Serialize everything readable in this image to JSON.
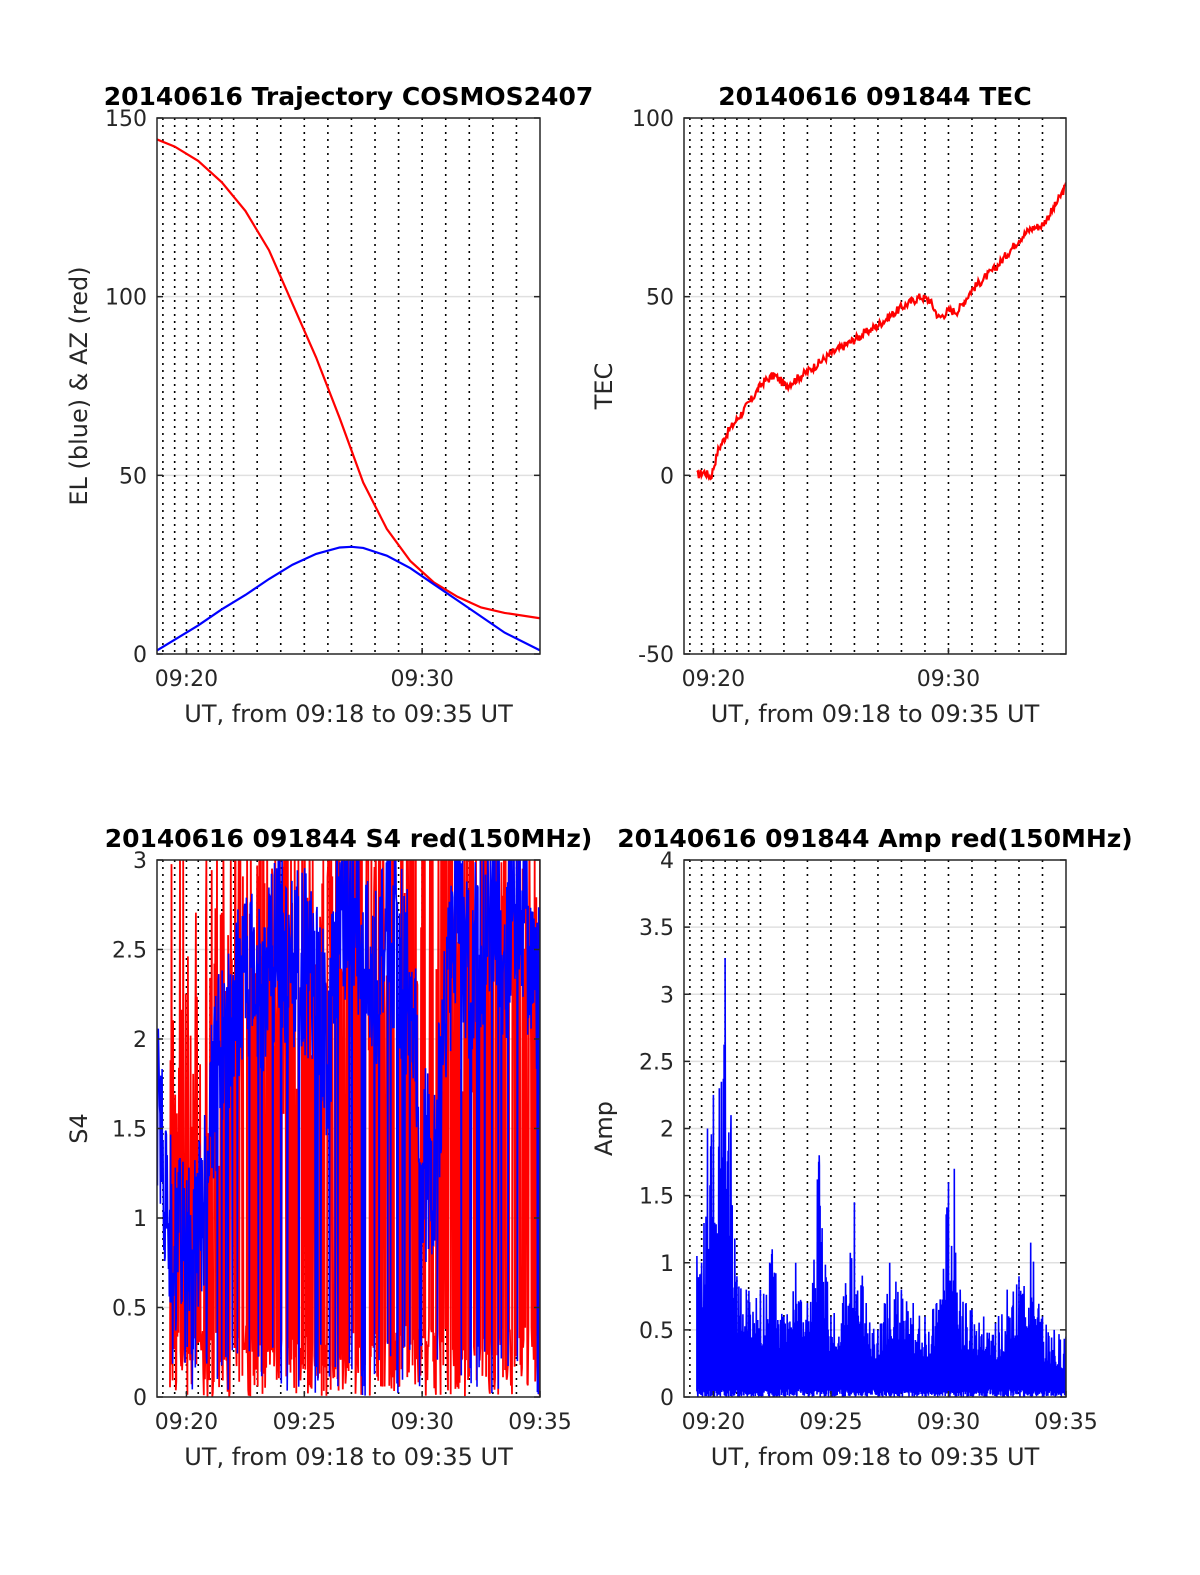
{
  "figure": {
    "background": "#ffffff",
    "trace_colors": {
      "red": "#ff0000",
      "blue": "#0000ff"
    }
  },
  "chart_data": [
    {
      "type": "line",
      "title": "20140616 Trajectory COSMOS2407",
      "xlabel": "UT, from 09:18 to 09:35 UT",
      "ylabel": "EL (blue) & AZ (red)",
      "xlim": [
        18.75,
        35
      ],
      "ylim": [
        0,
        150
      ],
      "xticks": [
        20,
        30
      ],
      "xtick_labels": [
        "09:20",
        "09:30"
      ],
      "yticks": [
        0,
        50,
        100,
        150
      ],
      "ytick_labels": [
        "0",
        "50",
        "100",
        "150"
      ],
      "grid": true,
      "series": [
        {
          "color": "#ff0000",
          "x": [
            18.75,
            19.5,
            20.5,
            21.5,
            22.5,
            23.5,
            24.5,
            25.5,
            26.5,
            27.5,
            28.5,
            29.5,
            30.5,
            31.5,
            32.5,
            33.5,
            35
          ],
          "values": [
            144,
            142,
            138,
            132,
            124,
            113,
            98,
            83,
            66,
            48,
            35,
            26,
            20,
            16,
            13,
            11.5,
            10
          ]
        },
        {
          "color": "#0000ff",
          "x": [
            18.75,
            19.5,
            20.5,
            21.5,
            22.5,
            23.5,
            24.5,
            25.5,
            26.5,
            27,
            27.5,
            28.5,
            29.5,
            30.5,
            31.5,
            32.5,
            33.5,
            35
          ],
          "values": [
            1,
            4,
            8,
            12.5,
            16.5,
            21,
            25,
            28,
            29.8,
            30,
            29.7,
            27.5,
            24,
            19.5,
            15,
            10.5,
            6,
            1
          ]
        }
      ]
    },
    {
      "type": "line",
      "title": "20140616 091844 TEC",
      "xlabel": "UT, from 09:18 to 09:35 UT",
      "ylabel": "TEC",
      "xlim": [
        18.75,
        35
      ],
      "ylim": [
        -50,
        100
      ],
      "xticks": [
        20,
        30
      ],
      "xtick_labels": [
        "09:20",
        "09:30"
      ],
      "yticks": [
        -50,
        0,
        50,
        100
      ],
      "ytick_labels": [
        "-50",
        "0",
        "50",
        "100"
      ],
      "grid": true,
      "series": [
        {
          "color": "#ff0000",
          "x": [
            19.3,
            19.6,
            19.9,
            20.2,
            20.6,
            21.1,
            21.6,
            22.1,
            22.6,
            23.1,
            24,
            25,
            26,
            27,
            28,
            28.8,
            29.2,
            29.6,
            30,
            30.4,
            31,
            32,
            33,
            33.5,
            34,
            34.5,
            35
          ],
          "values": [
            0,
            1,
            -0.5,
            7,
            12,
            16.5,
            21,
            26,
            28,
            25,
            29,
            34,
            38,
            42,
            47,
            50,
            49,
            44,
            46,
            46,
            52,
            58,
            66,
            69,
            70,
            75,
            81
          ]
        }
      ]
    },
    {
      "type": "line",
      "title": "20140616 091844 S4 red(150MHz)",
      "xlabel": "UT, from 09:18 to 09:35 UT",
      "ylabel": "S4",
      "xlim": [
        18.75,
        35
      ],
      "ylim": [
        0,
        3
      ],
      "xticks": [
        20,
        25,
        30,
        35
      ],
      "xtick_labels": [
        "09:20",
        "09:25",
        "09:30",
        "09:35"
      ],
      "yticks": [
        0,
        0.5,
        1,
        1.5,
        2,
        2.5,
        3
      ],
      "ytick_labels": [
        "0",
        "0.5",
        "1",
        "1.5",
        "2",
        "2.5",
        "3"
      ],
      "grid": true,
      "series": [
        {
          "color": "#ff0000",
          "note_noise": true,
          "x": [
            19.3,
            19.6,
            19.9,
            20.2,
            20.5,
            20.8,
            21.1,
            21.5,
            22,
            23,
            24,
            25,
            26,
            27,
            28,
            29,
            30,
            31,
            32,
            33,
            34,
            35
          ],
          "values": [
            1.5,
            2.0,
            1.8,
            1.3,
            1.5,
            1.6,
            1.8,
            1.7,
            2.0,
            2.5,
            2.2,
            2.3,
            2.4,
            2.3,
            2.5,
            2.4,
            2.6,
            2.2,
            2.3,
            2.5,
            2.4,
            2.0
          ]
        },
        {
          "color": "#0000ff",
          "x": [
            18.75,
            19.0,
            19.3,
            19.6,
            19.9,
            20.2,
            20.5,
            20.8,
            21.1,
            21.5,
            22,
            22.5,
            23,
            23.5,
            24,
            24.5,
            25,
            25.5,
            26,
            26.5,
            27,
            27.5,
            28,
            28.5,
            29,
            29.5,
            30,
            30.5,
            31,
            31.5,
            32,
            32.5,
            33,
            33.5,
            34,
            34.5,
            35
          ],
          "values": [
            1.5,
            1.3,
            1.0,
            0.8,
            0.75,
            0.7,
            0.8,
            1.1,
            1.6,
            1.9,
            2.2,
            2.3,
            2.2,
            2.4,
            2.5,
            2.3,
            2.4,
            2.2,
            1.9,
            2.6,
            2.8,
            2.5,
            2.3,
            2.6,
            2.4,
            2.2,
            1.3,
            1.1,
            2.2,
            2.6,
            2.3,
            2.5,
            2.7,
            2.4,
            2.8,
            2.5,
            2.1
          ]
        }
      ]
    },
    {
      "type": "line",
      "title": "20140616 091844 Amp red(150MHz)",
      "xlabel": "UT, from 09:18 to 09:35 UT",
      "ylabel": "Amp",
      "xlim": [
        18.75,
        35
      ],
      "ylim": [
        0,
        4
      ],
      "xticks": [
        20,
        25,
        30,
        35
      ],
      "xtick_labels": [
        "09:20",
        "09:25",
        "09:30",
        "09:35"
      ],
      "yticks": [
        0,
        0.5,
        1,
        1.5,
        2,
        2.5,
        3,
        3.5,
        4
      ],
      "ytick_labels": [
        "0",
        "0.5",
        "1",
        "1.5",
        "2",
        "2.5",
        "3",
        "3.5",
        "4"
      ],
      "grid": true,
      "series": [
        {
          "color": "#0000ff",
          "x": [
            19.3,
            19.5,
            19.75,
            20.0,
            20.25,
            20.5,
            20.75,
            21.0,
            21.4,
            22.0,
            22.5,
            23.0,
            23.5,
            24.0,
            24.5,
            25.0,
            25.5,
            26.0,
            26.5,
            27.0,
            27.5,
            28.0,
            28.5,
            29.0,
            29.5,
            30.0,
            30.25,
            30.5,
            30.75,
            31.0,
            31.5,
            32.0,
            32.5,
            33.0,
            33.5,
            34.0,
            34.5,
            35.0
          ],
          "values": [
            1.05,
            1.0,
            2.0,
            2.25,
            2.3,
            3.27,
            2.1,
            0.9,
            0.8,
            0.8,
            1.1,
            0.6,
            1.0,
            0.7,
            1.8,
            0.6,
            0.7,
            1.45,
            0.7,
            0.5,
            1.0,
            0.8,
            0.7,
            0.6,
            0.7,
            1.6,
            1.7,
            0.8,
            0.7,
            0.65,
            0.6,
            0.55,
            0.8,
            0.9,
            1.15,
            0.6,
            0.5,
            0.45
          ]
        }
      ]
    }
  ]
}
